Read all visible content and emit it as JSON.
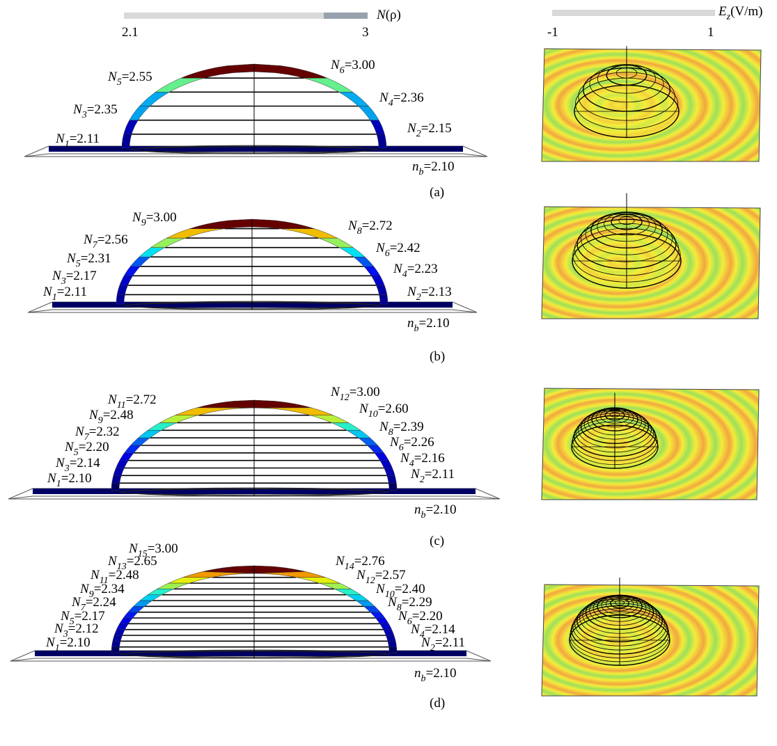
{
  "colorbar_n": {
    "symbol": "N",
    "arg": "(ρ)",
    "min": "2.1",
    "max": "3"
  },
  "colorbar_e": {
    "symbol": "E",
    "sub": "z",
    "unit": "(V/m)",
    "min": "-1",
    "max": "1"
  },
  "panels": [
    {
      "label": "(a)",
      "background": [
        "n",
        "b",
        "=2.10"
      ],
      "left": [
        [
          "N",
          "1",
          "=2.11"
        ],
        [
          "N",
          "3",
          "=2.35"
        ],
        [
          "N",
          "5",
          "=2.55"
        ]
      ],
      "right": [
        [
          "N",
          "2",
          "=2.15"
        ],
        [
          "N",
          "4",
          "=2.36"
        ],
        [
          "N",
          "6",
          "=3.00"
        ]
      ]
    },
    {
      "label": "(b)",
      "background": [
        "n",
        "b",
        "=2.10"
      ],
      "left": [
        [
          "N",
          "1",
          "=2.11"
        ],
        [
          "N",
          "3",
          "=2.17"
        ],
        [
          "N",
          "5",
          "=2.31"
        ],
        [
          "N",
          "7",
          "=2.56"
        ],
        [
          "N",
          "9",
          "=3.00"
        ]
      ],
      "right": [
        [
          "N",
          "2",
          "=2.13"
        ],
        [
          "N",
          "4",
          "=2.23"
        ],
        [
          "N",
          "6",
          "=2.42"
        ],
        [
          "N",
          "8",
          "=2.72"
        ]
      ]
    },
    {
      "label": "(c)",
      "background": [
        "n",
        "b",
        "=2.10"
      ],
      "left": [
        [
          "N",
          "1",
          "=2.10"
        ],
        [
          "N",
          "3",
          "=2.14"
        ],
        [
          "N",
          "5",
          "=2.20"
        ],
        [
          "N",
          "7",
          "=2.32"
        ],
        [
          "N",
          "9",
          "=2.48"
        ],
        [
          "N",
          "11",
          "=2.72"
        ]
      ],
      "right": [
        [
          "N",
          "2",
          "=2.11"
        ],
        [
          "N",
          "4",
          "=2.16"
        ],
        [
          "N",
          "6",
          "=2.26"
        ],
        [
          "N",
          "8",
          "=2.39"
        ],
        [
          "N",
          "10",
          "=2.60"
        ],
        [
          "N",
          "12",
          "=3.00"
        ]
      ]
    },
    {
      "label": "(d)",
      "background": [
        "n",
        "b",
        "=2.10"
      ],
      "left": [
        [
          "N",
          "1",
          "=2.10"
        ],
        [
          "N",
          "3",
          "=2.12"
        ],
        [
          "N",
          "5",
          "=2.17"
        ],
        [
          "N",
          "7",
          "=2.24"
        ],
        [
          "N",
          "9",
          "=2.34"
        ],
        [
          "N",
          "11",
          "=2.48"
        ],
        [
          "N",
          "13",
          "=2.65"
        ],
        [
          "N",
          "15",
          "=3.00"
        ]
      ],
      "right": [
        [
          "N",
          "2",
          "=2.11"
        ],
        [
          "N",
          "4",
          "=2.14"
        ],
        [
          "N",
          "6",
          "=2.20"
        ],
        [
          "N",
          "8",
          "=2.29"
        ],
        [
          "N",
          "10",
          "=2.40"
        ],
        [
          "N",
          "12",
          "=2.57"
        ],
        [
          "N",
          "14",
          "=2.76"
        ]
      ]
    }
  ]
}
